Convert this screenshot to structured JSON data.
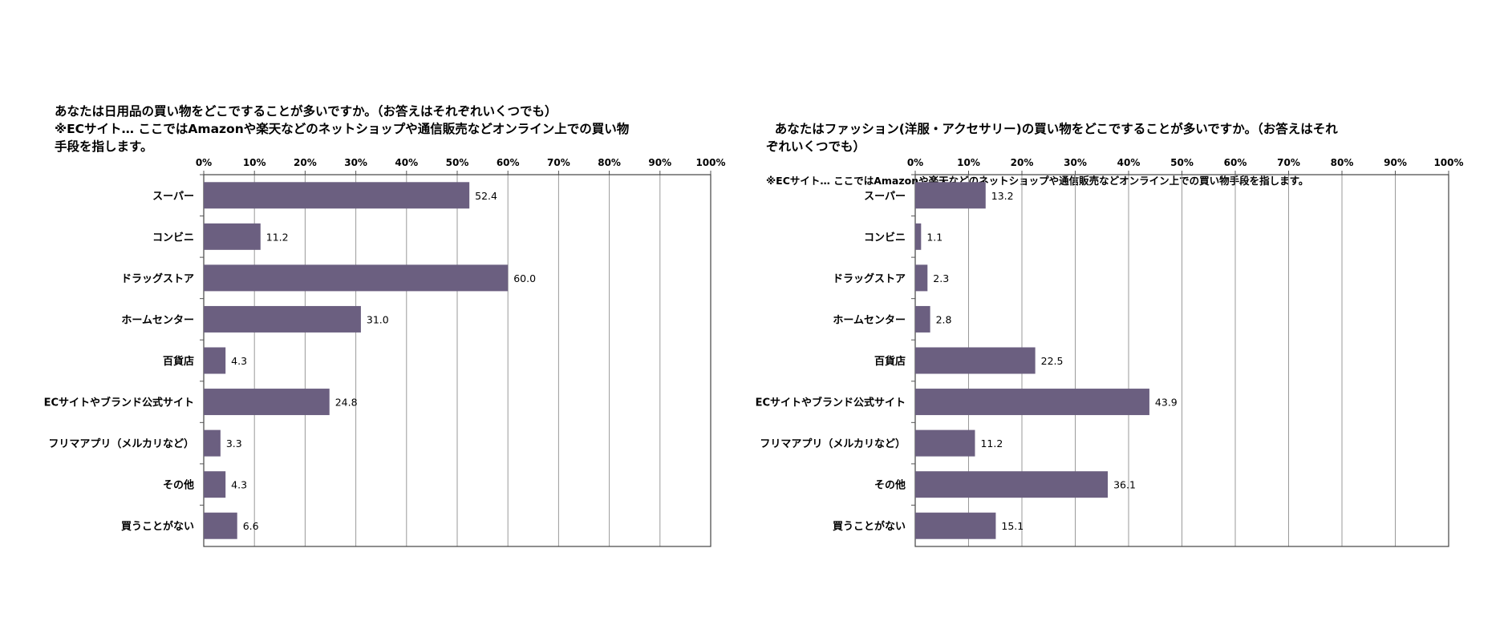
{
  "chart_data": [
    {
      "type": "bar",
      "orientation": "horizontal",
      "title": "あなたは日用品の買い物をどこですることが多いですか。（お答えはそれぞれいくつでも）\n※ECサイト… ここではAmazonや楽天などのネットショップや通信販売などオンライン上での買い物手段を指します。",
      "categories": [
        "スーパー",
        "コンビニ",
        "ドラッグストア",
        "ホームセンター",
        "百貨店",
        "ECサイトやブランド公式サイト",
        "フリマアプリ（メルカリなど）",
        "その他",
        "買うことがない"
      ],
      "values": [
        52.4,
        11.2,
        60.0,
        31.0,
        4.3,
        24.8,
        3.3,
        4.3,
        6.6
      ],
      "value_labels": [
        "52.4",
        "11.2",
        "60.0",
        "31.0",
        "4.3",
        "24.8",
        "3.3",
        "4.3",
        "6.6"
      ],
      "xlim": [
        0,
        100
      ],
      "ticks": [
        "0%",
        "10%",
        "20%",
        "30%",
        "40%",
        "50%",
        "60%",
        "70%",
        "80%",
        "90%",
        "100%"
      ],
      "axis_position": "top",
      "grid": true,
      "bar_color": "#6b5f80"
    },
    {
      "type": "bar",
      "orientation": "horizontal",
      "title": "あなたはファッション(洋服・アクセサリー)の買い物をどこですることが多いですか。（お答えはそれぞれいくつでも）",
      "subtitle": "※ECサイト… ここではAmazonや楽天などのネットショップや通信販売などオンライン上での買い物手段を指します。",
      "categories": [
        "スーパー",
        "コンビニ",
        "ドラッグストア",
        "ホームセンター",
        "百貨店",
        "ECサイトやブランド公式サイト",
        "フリマアプリ（メルカリなど）",
        "その他",
        "買うことがない"
      ],
      "values": [
        13.2,
        1.1,
        2.3,
        2.8,
        22.5,
        43.9,
        11.2,
        36.1,
        15.1
      ],
      "value_labels": [
        "13.2",
        "1.1",
        "2.3",
        "2.8",
        "22.5",
        "43.9",
        "11.2",
        "36.1",
        "15.1"
      ],
      "xlim": [
        0,
        100
      ],
      "ticks": [
        "0%",
        "10%",
        "20%",
        "30%",
        "40%",
        "50%",
        "60%",
        "70%",
        "80%",
        "90%",
        "100%"
      ],
      "axis_position": "top",
      "grid": true,
      "bar_color": "#6b5f80"
    }
  ]
}
